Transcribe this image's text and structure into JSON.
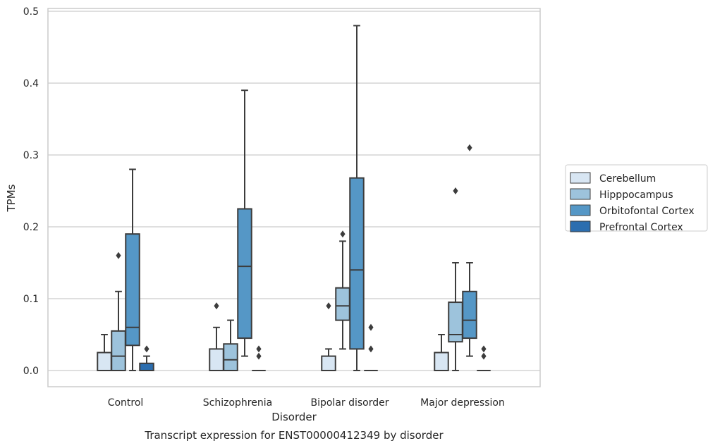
{
  "chart_data": {
    "type": "box",
    "title": "Transcript expression for ENST00000412349 by disorder",
    "xlabel": "Disorder",
    "ylabel": "TPMs",
    "ylim": [
      -0.023,
      0.505
    ],
    "yticks": [
      "0.0",
      "0.1",
      "0.2",
      "0.3",
      "0.4",
      "0.5"
    ],
    "ytick_values": [
      0,
      0.1,
      0.2,
      0.3,
      0.4,
      0.5
    ],
    "grid": "horizontal",
    "legend_position": "right",
    "categories": [
      "Control",
      "Schizophrenia",
      "Bipolar disorder",
      "Major depression"
    ],
    "series": [
      {
        "name": "Cerebellum",
        "color": "#d8e6f3",
        "boxes": [
          {
            "low": 0,
            "q1": 0,
            "median": 0,
            "q3": 0.025,
            "high": 0.05,
            "outliers": []
          },
          {
            "low": 0,
            "q1": 0,
            "median": 0,
            "q3": 0.03,
            "high": 0.06,
            "outliers": [
              0.09
            ]
          },
          {
            "low": 0,
            "q1": 0,
            "median": 0,
            "q3": 0.02,
            "high": 0.03,
            "outliers": [
              0.09
            ]
          },
          {
            "low": 0,
            "q1": 0,
            "median": 0,
            "q3": 0.025,
            "high": 0.05,
            "outliers": []
          }
        ]
      },
      {
        "name": "Hipppocampus",
        "color": "#9dc3dc",
        "boxes": [
          {
            "low": 0,
            "q1": 0,
            "median": 0.02,
            "q3": 0.055,
            "high": 0.11,
            "outliers": [
              0.16
            ]
          },
          {
            "low": 0,
            "q1": 0,
            "median": 0.015,
            "q3": 0.037,
            "high": 0.07,
            "outliers": []
          },
          {
            "low": 0.03,
            "q1": 0.07,
            "median": 0.09,
            "q3": 0.115,
            "high": 0.18,
            "outliers": [
              0.19
            ]
          },
          {
            "low": 0,
            "q1": 0.04,
            "median": 0.05,
            "q3": 0.095,
            "high": 0.15,
            "outliers": [
              0.25
            ]
          }
        ]
      },
      {
        "name": "Orbitofontal Cortex",
        "color": "#5597c6",
        "boxes": [
          {
            "low": 0,
            "q1": 0.035,
            "median": 0.06,
            "q3": 0.19,
            "high": 0.28,
            "outliers": []
          },
          {
            "low": 0.02,
            "q1": 0.045,
            "median": 0.145,
            "q3": 0.225,
            "high": 0.39,
            "outliers": []
          },
          {
            "low": 0,
            "q1": 0.03,
            "median": 0.14,
            "q3": 0.268,
            "high": 0.48,
            "outliers": []
          },
          {
            "low": 0.02,
            "q1": 0.045,
            "median": 0.07,
            "q3": 0.11,
            "high": 0.15,
            "outliers": [
              0.31
            ]
          }
        ]
      },
      {
        "name": "Prefrontal Cortex",
        "color": "#2c6eaf",
        "boxes": [
          {
            "low": 0,
            "q1": 0,
            "median": 0,
            "q3": 0.01,
            "high": 0.02,
            "outliers": [
              0.03
            ]
          },
          {
            "low": 0,
            "q1": 0,
            "median": 0,
            "q3": 0,
            "high": 0,
            "outliers": [
              0.02,
              0.03
            ]
          },
          {
            "low": 0,
            "q1": 0,
            "median": 0,
            "q3": 0,
            "high": 0,
            "outliers": [
              0.03,
              0.06
            ]
          },
          {
            "low": 0,
            "q1": 0,
            "median": 0,
            "q3": 0,
            "high": 0,
            "outliers": [
              0.02,
              0.03
            ]
          }
        ]
      }
    ]
  }
}
